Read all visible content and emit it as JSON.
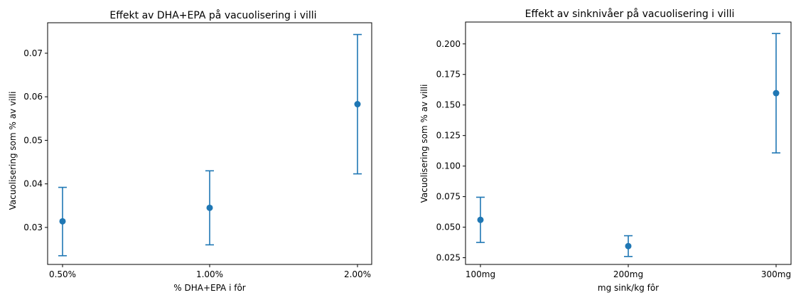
{
  "colors": {
    "series": "#1f77b4",
    "axis": "#000000",
    "background": "#ffffff"
  },
  "chart_data": [
    {
      "type": "scatter",
      "title": "Effekt av DHA+EPA på vacuolisering i villi",
      "xlabel": "% DHA+EPA i fôr",
      "ylabel": "Vacuolisering som % av villi",
      "categories": [
        "0.50%",
        "1.00%",
        "2.00%"
      ],
      "series": [
        {
          "values": [
            0.0314,
            0.0345,
            0.0583
          ],
          "error_low": [
            0.0235,
            0.026,
            0.0423
          ],
          "error_high": [
            0.0392,
            0.043,
            0.0743
          ]
        }
      ],
      "ylim": [
        0.0215,
        0.077
      ],
      "yticks": [
        0.03,
        0.04,
        0.05,
        0.06,
        0.07
      ],
      "ytick_labels": [
        "0.03",
        "0.04",
        "0.05",
        "0.06",
        "0.07"
      ],
      "grid": false,
      "legend": "none"
    },
    {
      "type": "scatter",
      "title": "Effekt av sinknivåer på vacuolisering i villi",
      "xlabel": "mg sink/kg fôr",
      "ylabel": "Vacuolisering som % av villi",
      "categories": [
        "100mg",
        "200mg",
        "300mg"
      ],
      "series": [
        {
          "values": [
            0.056,
            0.0345,
            0.1597
          ],
          "error_low": [
            0.0375,
            0.026,
            0.1108
          ],
          "error_high": [
            0.0745,
            0.043,
            0.2085
          ]
        }
      ],
      "ylim": [
        0.0195,
        0.2179
      ],
      "yticks": [
        0.025,
        0.05,
        0.075,
        0.1,
        0.125,
        0.15,
        0.175,
        0.2
      ],
      "ytick_labels": [
        "0.025",
        "0.050",
        "0.075",
        "0.100",
        "0.125",
        "0.150",
        "0.175",
        "0.200"
      ],
      "grid": false,
      "legend": "none"
    }
  ]
}
